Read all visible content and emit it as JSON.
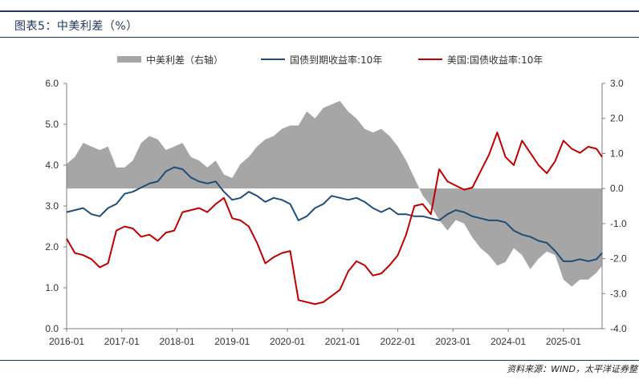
{
  "figure": {
    "title": "图表5：中美利差（%）",
    "source": "资料来源：WIND，太平洋证券整"
  },
  "chart_data": {
    "type": "line",
    "x_tick_labels": [
      "2016-01",
      "2017-01",
      "2018-01",
      "2019-01",
      "2020-01",
      "2021-01",
      "2022-01",
      "2023-01",
      "2024-01",
      "2025-01"
    ],
    "y_left": {
      "min": 0.0,
      "max": 6.0,
      "ticks": [
        "0.0",
        "1.0",
        "2.0",
        "3.0",
        "4.0",
        "5.0",
        "6.0"
      ]
    },
    "y_right": {
      "min": -4.0,
      "max": 3.0,
      "ticks": [
        "-4.0",
        "-3.0",
        "-2.0",
        "-1.0",
        "0.0",
        "1.0",
        "2.0",
        "3.0"
      ]
    },
    "legend_position": "top",
    "series": [
      {
        "name": "中美利差（右轴）",
        "kind": "area",
        "axis": "right",
        "color": "#a6a6a6",
        "x": [
          2016.0,
          2016.15,
          2016.3,
          2016.45,
          2016.6,
          2016.75,
          2016.9,
          2017.05,
          2017.2,
          2017.35,
          2017.5,
          2017.65,
          2017.8,
          2017.95,
          2018.1,
          2018.25,
          2018.4,
          2018.55,
          2018.7,
          2018.85,
          2019.0,
          2019.15,
          2019.3,
          2019.45,
          2019.6,
          2019.75,
          2019.9,
          2020.05,
          2020.2,
          2020.35,
          2020.5,
          2020.65,
          2020.8,
          2020.95,
          2021.1,
          2021.25,
          2021.4,
          2021.55,
          2021.7,
          2021.85,
          2022.0,
          2022.15,
          2022.3,
          2022.45,
          2022.6,
          2022.75,
          2022.9,
          2023.05,
          2023.2,
          2023.35,
          2023.5,
          2023.65,
          2023.8,
          2023.95,
          2024.1,
          2024.25,
          2024.4,
          2024.55,
          2024.7,
          2024.85,
          2025.0,
          2025.15,
          2025.3,
          2025.45,
          2025.6,
          2025.7
        ],
        "values": [
          0.7,
          0.9,
          1.3,
          1.2,
          1.1,
          1.2,
          0.6,
          0.6,
          0.8,
          1.3,
          1.5,
          1.4,
          1.1,
          1.2,
          1.3,
          0.9,
          0.8,
          0.6,
          0.8,
          0.4,
          0.3,
          0.7,
          0.9,
          1.2,
          1.4,
          1.5,
          1.7,
          1.8,
          1.8,
          2.2,
          2.0,
          2.3,
          2.4,
          2.5,
          2.2,
          2.0,
          1.7,
          1.6,
          1.7,
          1.5,
          1.2,
          0.8,
          0.3,
          -0.2,
          -0.5,
          -0.9,
          -1.2,
          -0.9,
          -1.0,
          -1.4,
          -1.7,
          -1.9,
          -2.2,
          -2.1,
          -1.7,
          -1.9,
          -2.3,
          -2.0,
          -1.8,
          -1.9,
          -2.6,
          -2.8,
          -2.6,
          -2.6,
          -2.4,
          -2.2
        ]
      },
      {
        "name": "国债到期收益率:10年",
        "kind": "line",
        "axis": "left",
        "color": "#1f4e79",
        "x": [
          2016.0,
          2016.15,
          2016.3,
          2016.45,
          2016.6,
          2016.75,
          2016.9,
          2017.05,
          2017.2,
          2017.35,
          2017.5,
          2017.65,
          2017.8,
          2017.95,
          2018.1,
          2018.25,
          2018.4,
          2018.55,
          2018.7,
          2018.85,
          2019.0,
          2019.15,
          2019.3,
          2019.45,
          2019.6,
          2019.75,
          2019.9,
          2020.05,
          2020.2,
          2020.35,
          2020.5,
          2020.65,
          2020.8,
          2020.95,
          2021.1,
          2021.25,
          2021.4,
          2021.55,
          2021.7,
          2021.85,
          2022.0,
          2022.15,
          2022.3,
          2022.45,
          2022.6,
          2022.75,
          2022.9,
          2023.05,
          2023.2,
          2023.35,
          2023.5,
          2023.65,
          2023.8,
          2023.95,
          2024.1,
          2024.25,
          2024.4,
          2024.55,
          2024.7,
          2024.85,
          2025.0,
          2025.15,
          2025.3,
          2025.45,
          2025.6,
          2025.7
        ],
        "values": [
          2.85,
          2.9,
          2.95,
          2.8,
          2.75,
          2.95,
          3.05,
          3.3,
          3.35,
          3.45,
          3.55,
          3.6,
          3.85,
          3.95,
          3.9,
          3.7,
          3.6,
          3.55,
          3.6,
          3.35,
          3.15,
          3.2,
          3.35,
          3.25,
          3.1,
          3.2,
          3.15,
          3.05,
          2.65,
          2.75,
          2.95,
          3.05,
          3.25,
          3.2,
          3.15,
          3.2,
          3.1,
          2.95,
          2.85,
          2.95,
          2.8,
          2.8,
          2.75,
          2.75,
          2.7,
          2.65,
          2.8,
          2.9,
          2.85,
          2.75,
          2.7,
          2.65,
          2.65,
          2.6,
          2.4,
          2.3,
          2.25,
          2.15,
          2.1,
          1.9,
          1.65,
          1.65,
          1.7,
          1.65,
          1.7,
          1.85
        ]
      },
      {
        "name": "美国:国债收益率:10年",
        "kind": "line",
        "axis": "left",
        "color": "#c00000",
        "x": [
          2016.0,
          2016.15,
          2016.3,
          2016.45,
          2016.6,
          2016.75,
          2016.9,
          2017.05,
          2017.2,
          2017.35,
          2017.5,
          2017.65,
          2017.8,
          2017.95,
          2018.1,
          2018.25,
          2018.4,
          2018.55,
          2018.7,
          2018.85,
          2019.0,
          2019.15,
          2019.3,
          2019.45,
          2019.6,
          2019.75,
          2019.9,
          2020.05,
          2020.2,
          2020.35,
          2020.5,
          2020.65,
          2020.8,
          2020.95,
          2021.1,
          2021.25,
          2021.4,
          2021.55,
          2021.7,
          2021.85,
          2022.0,
          2022.15,
          2022.3,
          2022.45,
          2022.6,
          2022.75,
          2022.9,
          2023.05,
          2023.2,
          2023.35,
          2023.5,
          2023.65,
          2023.8,
          2023.95,
          2024.1,
          2024.25,
          2024.4,
          2024.55,
          2024.7,
          2024.85,
          2025.0,
          2025.15,
          2025.3,
          2025.45,
          2025.6,
          2025.7
        ],
        "values": [
          2.2,
          1.85,
          1.8,
          1.7,
          1.5,
          1.6,
          2.4,
          2.5,
          2.45,
          2.25,
          2.3,
          2.15,
          2.35,
          2.4,
          2.85,
          2.9,
          2.95,
          2.85,
          3.05,
          3.2,
          2.7,
          2.65,
          2.5,
          2.1,
          1.6,
          1.75,
          1.85,
          1.9,
          0.7,
          0.65,
          0.6,
          0.65,
          0.8,
          0.95,
          1.4,
          1.65,
          1.55,
          1.3,
          1.35,
          1.55,
          1.8,
          2.3,
          3.0,
          3.05,
          2.8,
          3.9,
          3.6,
          3.5,
          3.4,
          3.45,
          3.85,
          4.25,
          4.8,
          4.2,
          4.0,
          4.6,
          4.3,
          4.0,
          3.8,
          4.1,
          4.6,
          4.4,
          4.3,
          4.45,
          4.4,
          4.2
        ]
      }
    ]
  }
}
